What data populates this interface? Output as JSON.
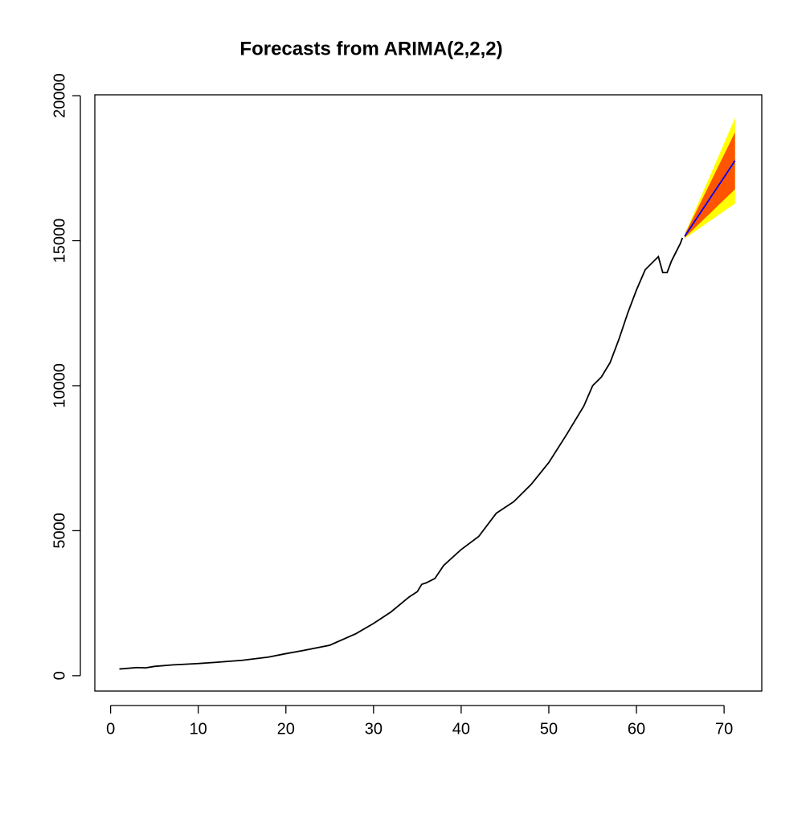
{
  "chart_data": {
    "type": "forecast",
    "title": "Forecasts from ARIMA(2,2,2)",
    "xlim": [
      -1.8,
      74.3
    ],
    "ylim": [
      -530,
      20030
    ],
    "xticks": [
      0,
      10,
      20,
      30,
      40,
      50,
      60,
      70
    ],
    "yticks": [
      0,
      5000,
      10000,
      15000,
      20000
    ],
    "series": [
      {
        "color": "#000000",
        "x": [
          1,
          3,
          4,
          5,
          7,
          10,
          12,
          15,
          18,
          20,
          22,
          25,
          28,
          30,
          32,
          34,
          35,
          35.5,
          36,
          37,
          38,
          40,
          42,
          44,
          45,
          46,
          48,
          50,
          52,
          54,
          55,
          56,
          57,
          58,
          59,
          60,
          61,
          62,
          62.5,
          63,
          63.5,
          64,
          65,
          65.25
        ],
        "values": [
          230,
          280,
          270,
          320,
          370,
          420,
          460,
          530,
          640,
          760,
          870,
          1050,
          1450,
          1800,
          2200,
          2700,
          2900,
          3150,
          3200,
          3350,
          3800,
          4350,
          4800,
          5600,
          5800,
          6000,
          6600,
          7350,
          8300,
          9300,
          10000,
          10300,
          10800,
          11600,
          12500,
          13300,
          14000,
          14300,
          14450,
          13900,
          13900,
          14300,
          14900,
          15100
        ]
      },
      {
        "color": "#0000ff",
        "x": [
          65.5,
          67,
          68.5,
          70,
          71.25
        ],
        "values": [
          15150,
          15830,
          16510,
          17190,
          17760
        ]
      }
    ],
    "intervals": [
      {
        "color": "#ffff00",
        "x": [
          65.5,
          67,
          68.5,
          70,
          71.25
        ],
        "lower": [
          15075,
          15390,
          15704,
          16018,
          16280
        ],
        "upper": [
          15225,
          16270,
          17316,
          18362,
          19240
        ]
      },
      {
        "color": "#ff5500",
        "x": [
          65.5,
          67,
          68.5,
          70,
          71.25
        ],
        "lower": [
          15100,
          15537,
          15974,
          16411,
          16775
        ],
        "upper": [
          15200,
          16123,
          17046,
          17969,
          18745
        ]
      }
    ]
  }
}
